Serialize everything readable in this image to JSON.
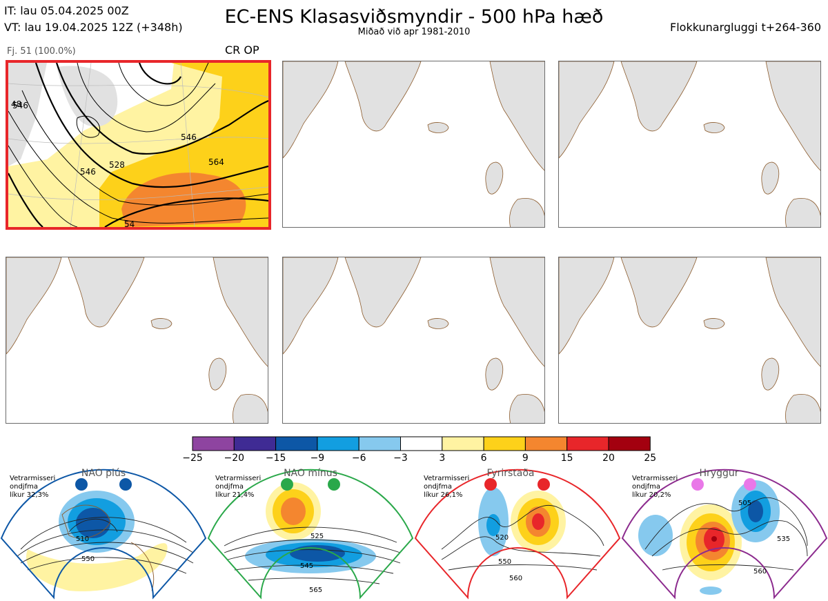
{
  "header": {
    "title": "EC-ENS Klasasviðsmyndir - 500 hPa hæð",
    "subtitle": "Miðað við apr 1981-2010",
    "it_line": "IT: lau 05.04.2025 00Z",
    "vt_line": "VT: lau 19.04.2025 12Z  (+348h)",
    "window_line": "Flokkunargluggi t+264-360"
  },
  "panel1": {
    "member_count": "Fj. 51 (100.0%)",
    "regime_label": "CR OP",
    "contour_labels": [
      "528",
      "546",
      "546",
      "564",
      "546",
      "54",
      "48"
    ]
  },
  "colorbar": {
    "ticks": [
      "−25",
      "−20",
      "−15",
      "−9",
      "−6",
      "−3",
      "3",
      "6",
      "9",
      "15",
      "20",
      "25"
    ],
    "colors": [
      "#8e44a0",
      "#3f2b94",
      "#0d57a6",
      "#129ee0",
      "#86c9ee",
      "#ffffff",
      "#fff3a2",
      "#fdd11a",
      "#f4862f",
      "#e8262a",
      "#a3000f"
    ]
  },
  "regimes": [
    {
      "name": "NAO plús",
      "l1": "Vetrarmisseri",
      "l2": "ondjfma",
      "l3": "líkur 32,3%",
      "color": "#0d57a6",
      "contours": [
        "510",
        "550"
      ]
    },
    {
      "name": "NAO mínus",
      "l1": "Vetrarmisseri",
      "l2": "ondjfma",
      "l3": "líkur 21,4%",
      "color": "#2aa84a",
      "contours": [
        "525",
        "545",
        "565"
      ]
    },
    {
      "name": "Fyrirstaða",
      "l1": "Vetrarmisseri",
      "l2": "ondjfma",
      "l3": "líkur 26,1%",
      "color": "#e8262a",
      "contours": [
        "520",
        "550",
        "560"
      ]
    },
    {
      "name": "Hryggur",
      "l1": "Vetrarmisseri",
      "l2": "ondjfma",
      "l3": "líkur 20,2%",
      "color": "#8c2b8e",
      "contours": [
        "505",
        "535",
        "560"
      ]
    }
  ]
}
